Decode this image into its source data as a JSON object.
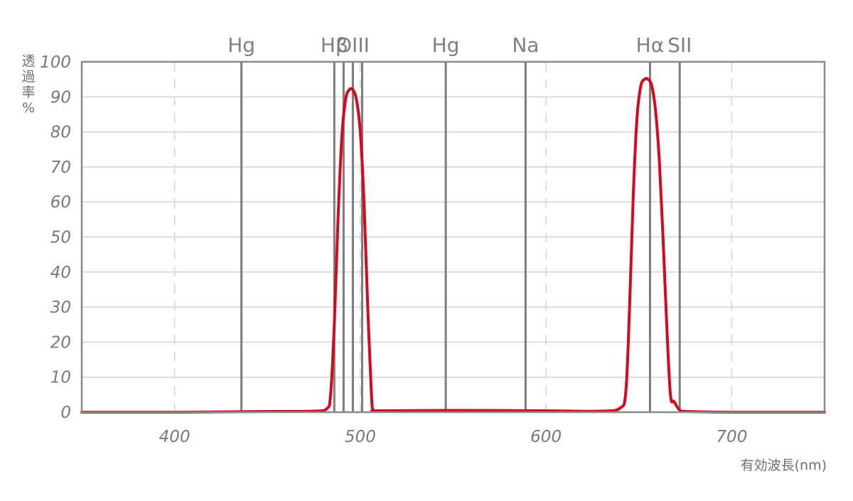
{
  "chart_data": {
    "type": "line",
    "xlabel": "有効波長(nm)",
    "ylabel": "透過率%",
    "xlim": [
      350,
      750
    ],
    "ylim": [
      0,
      100
    ],
    "y_ticks": [
      "0",
      "10",
      "20",
      "30",
      "40",
      "50",
      "60",
      "70",
      "80",
      "90",
      "100"
    ],
    "y_tick_values": [
      0,
      10,
      20,
      30,
      40,
      50,
      60,
      70,
      80,
      90,
      100
    ],
    "x_ticks": [
      "400",
      "500",
      "600",
      "700"
    ],
    "x_tick_values": [
      400,
      500,
      600,
      700
    ],
    "grid": true,
    "emission_lines": [
      {
        "label": "Hg",
        "wavelength": 436
      },
      {
        "label": "Hβ",
        "wavelength": 486
      },
      {
        "label": "",
        "wavelength": 491
      },
      {
        "label": "OIII",
        "wavelength": 496
      },
      {
        "label": "",
        "wavelength": 501
      },
      {
        "label": "Hg",
        "wavelength": 546
      },
      {
        "label": "Na",
        "wavelength": 589
      },
      {
        "label": "Hα",
        "wavelength": 656
      },
      {
        "label": "SII",
        "wavelength": 672
      }
    ],
    "series": [
      {
        "color": "#d5081e",
        "x": [
          350,
          400,
          450,
          475,
          482,
          484,
          486,
          488,
          490,
          492,
          494,
          496,
          498,
          500,
          502,
          504,
          506,
          507,
          510,
          550,
          600,
          630,
          640,
          643,
          645,
          647,
          649,
          651,
          653,
          655,
          657,
          659,
          661,
          663,
          665,
          667,
          669,
          672,
          676,
          700,
          750
        ],
        "y": [
          0,
          0,
          0.2,
          0.3,
          1,
          5,
          25,
          55,
          78,
          89,
          92,
          92,
          89,
          80,
          60,
          30,
          5,
          0.6,
          0.4,
          0.5,
          0.4,
          0.3,
          1.2,
          6,
          30,
          62,
          84,
          93,
          95,
          95,
          93,
          86,
          72,
          50,
          25,
          5,
          3,
          0.6,
          0.2,
          0,
          0
        ]
      }
    ]
  }
}
